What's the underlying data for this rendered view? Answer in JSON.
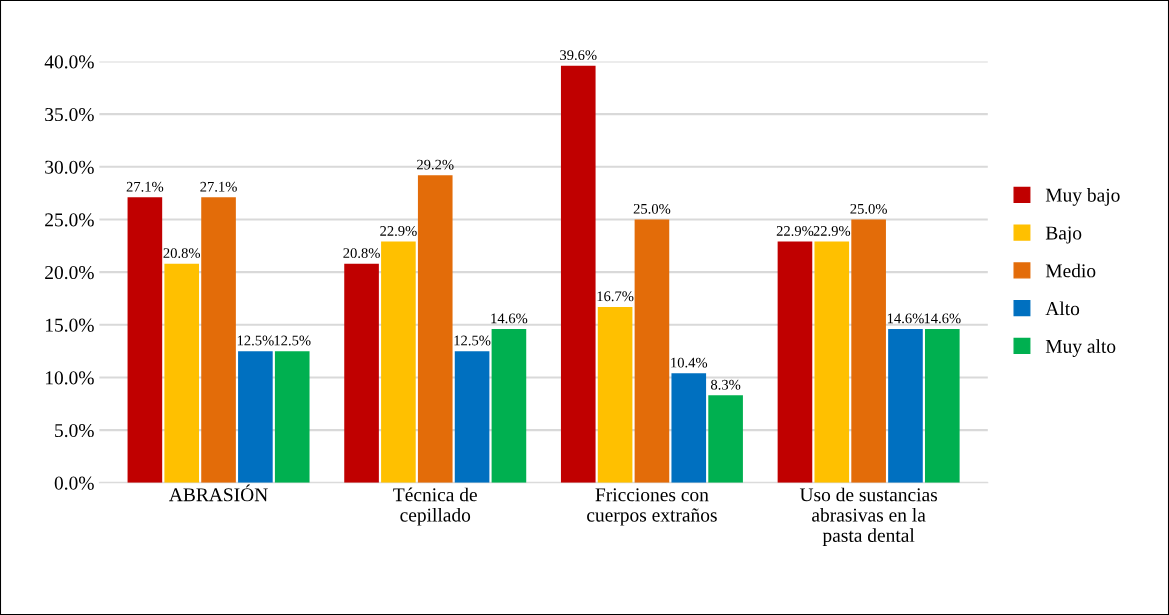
{
  "chart_data": {
    "type": "bar",
    "categories": [
      "ABRASIÓN",
      "Técnica de\ncepillado",
      "Fricciones con\ncuerpos extraños",
      "Uso de sustancias\nabrasivas en la\npasta dental"
    ],
    "series": [
      {
        "name": "Muy bajo",
        "color": "#c00000",
        "values": [
          27.1,
          20.8,
          39.6,
          22.9
        ],
        "value_labels": [
          "27.1%",
          "20.8%",
          "39.6%",
          "22.9%"
        ]
      },
      {
        "name": "Bajo",
        "color": "#ffc000",
        "values": [
          20.8,
          22.9,
          16.7,
          22.9
        ],
        "value_labels": [
          "20.8%",
          "22.9%",
          "16.7%",
          "22.9%"
        ]
      },
      {
        "name": "Medio",
        "color": "#e36c09",
        "values": [
          27.1,
          29.2,
          25.0,
          25.0
        ],
        "value_labels": [
          "27.1%",
          "29.2%",
          "25.0%",
          "25.0%"
        ]
      },
      {
        "name": "Alto",
        "color": "#0070c0",
        "values": [
          12.5,
          12.5,
          10.4,
          14.6
        ],
        "value_labels": [
          "12.5%",
          "12.5%",
          "10.4%",
          "14.6%"
        ]
      },
      {
        "name": "Muy alto",
        "color": "#00b050",
        "values": [
          12.5,
          14.6,
          8.3,
          14.6
        ],
        "value_labels": [
          "12.5%",
          "14.6%",
          "8.3%",
          "14.6%"
        ]
      }
    ],
    "ylim": [
      0,
      40
    ],
    "yticks": [
      {
        "value": 0,
        "label": "0.0%"
      },
      {
        "value": 5,
        "label": "5.0%"
      },
      {
        "value": 10,
        "label": "10.0%"
      },
      {
        "value": 15,
        "label": "15.0%"
      },
      {
        "value": 20,
        "label": "20.0%"
      },
      {
        "value": 25,
        "label": "25.0%"
      },
      {
        "value": 30,
        "label": "30.0%"
      },
      {
        "value": 35,
        "label": "35.0%"
      },
      {
        "value": 40,
        "label": "40.0%"
      }
    ],
    "grid": "y",
    "legend": "right"
  }
}
